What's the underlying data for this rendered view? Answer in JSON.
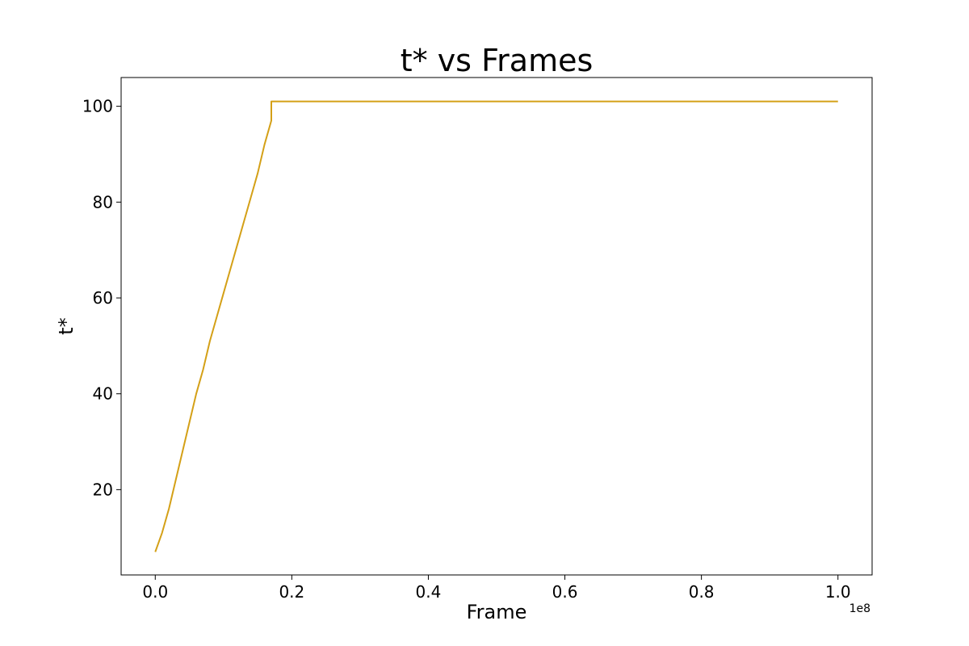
{
  "chart_data": {
    "type": "line",
    "title": "t* vs Frames",
    "xlabel": "Frame",
    "ylabel": "t*",
    "x_offset_label": "1e8",
    "xlim": [
      -5000000,
      105000000
    ],
    "ylim": [
      2.2,
      106
    ],
    "x_ticks": [
      0,
      20000000,
      40000000,
      60000000,
      80000000,
      100000000
    ],
    "x_tick_labels": [
      "0.0",
      "0.2",
      "0.4",
      "0.6",
      "0.8",
      "1.0"
    ],
    "y_ticks": [
      20,
      40,
      60,
      80,
      100
    ],
    "y_tick_labels": [
      "20",
      "40",
      "60",
      "80",
      "100"
    ],
    "grid": false,
    "series": [
      {
        "color": "#d4a017",
        "x": [
          0,
          500000,
          1000000,
          2000000,
          3000000,
          4000000,
          5000000,
          6000000,
          7000000,
          8000000,
          9000000,
          10000000,
          11000000,
          12000000,
          13000000,
          14000000,
          15000000,
          16000000,
          17000000,
          17000000,
          100000000
        ],
        "y": [
          7,
          9,
          11,
          16,
          22,
          28,
          34,
          40,
          45,
          51,
          56,
          61,
          66,
          71,
          76,
          81,
          86,
          92,
          97,
          101,
          101
        ]
      }
    ]
  }
}
